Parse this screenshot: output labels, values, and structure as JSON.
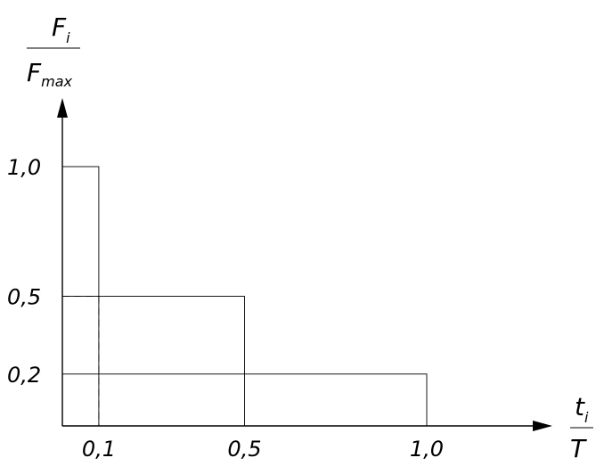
{
  "chart_data": {
    "type": "bar",
    "title": "",
    "xlabel": {
      "numerator": "t",
      "numerator_sub": "i",
      "denominator": "T"
    },
    "ylabel": {
      "numerator": "F",
      "numerator_sub": "i",
      "denominator": "F",
      "denominator_sub": "max"
    },
    "xlim": [
      0,
      1.0
    ],
    "ylim": [
      0,
      1.0
    ],
    "grid": false,
    "legend": "none",
    "bars": [
      {
        "x_end": 0.1,
        "value": 1.0
      },
      {
        "x_end": 0.5,
        "value": 0.5
      },
      {
        "x_end": 1.0,
        "value": 0.2
      }
    ],
    "x_ticks": [
      {
        "value": 0.1,
        "label": "0,1"
      },
      {
        "value": 0.5,
        "label": "0,5"
      },
      {
        "value": 1.0,
        "label": "1,0"
      }
    ],
    "y_ticks": [
      {
        "value": 1.0,
        "label": "1,0"
      },
      {
        "value": 0.5,
        "label": "0,5"
      },
      {
        "value": 0.2,
        "label": "0,2"
      }
    ],
    "dashed_guides": [
      {
        "x": 0.1,
        "y": 0.5
      }
    ]
  }
}
